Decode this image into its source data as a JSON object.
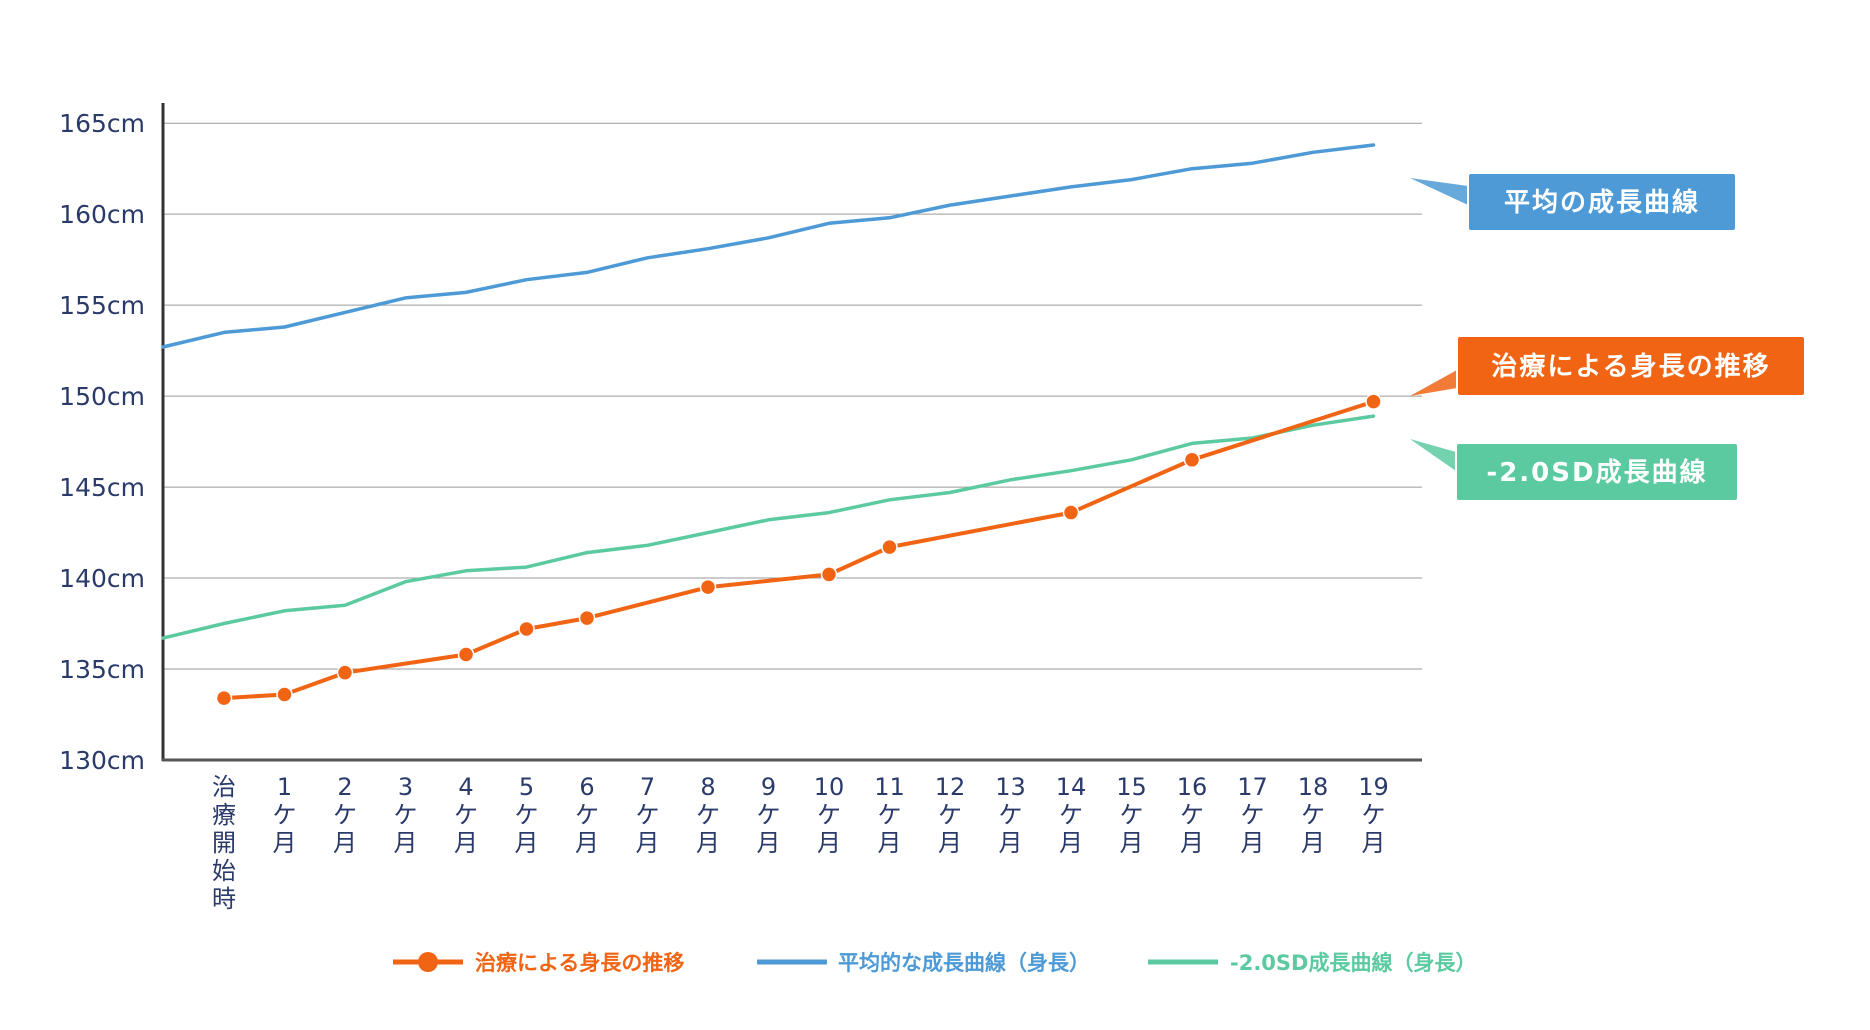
{
  "chart_data": {
    "type": "line",
    "y_tick_labels": [
      "130cm",
      "135cm",
      "140cm",
      "145cm",
      "150cm",
      "155cm",
      "160cm",
      "165cm"
    ],
    "ylim": [
      130,
      166
    ],
    "categories": [
      "治療開始時",
      "1ケ月",
      "2ケ月",
      "3ケ月",
      "4ケ月",
      "5ケ月",
      "6ケ月",
      "7ケ月",
      "8ケ月",
      "9ケ月",
      "10ケ月",
      "11ケ月",
      "12ケ月",
      "13ケ月",
      "14ケ月",
      "15ケ月",
      "16ケ月",
      "17ケ月",
      "18ケ月",
      "19ケ月"
    ],
    "x_tick_labels": [
      [
        "治",
        "療",
        "開",
        "始",
        "時"
      ],
      [
        "1",
        "ケ",
        "月"
      ],
      [
        "2",
        "ケ",
        "月"
      ],
      [
        "3",
        "ケ",
        "月"
      ],
      [
        "4",
        "ケ",
        "月"
      ],
      [
        "5",
        "ケ",
        "月"
      ],
      [
        "6",
        "ケ",
        "月"
      ],
      [
        "7",
        "ケ",
        "月"
      ],
      [
        "8",
        "ケ",
        "月"
      ],
      [
        "9",
        "ケ",
        "月"
      ],
      [
        "10",
        "ケ",
        "月"
      ],
      [
        "11",
        "ケ",
        "月"
      ],
      [
        "12",
        "ケ",
        "月"
      ],
      [
        "13",
        "ケ",
        "月"
      ],
      [
        "14",
        "ケ",
        "月"
      ],
      [
        "15",
        "ケ",
        "月"
      ],
      [
        "16",
        "ケ",
        "月"
      ],
      [
        "17",
        "ケ",
        "月"
      ],
      [
        "18",
        "ケ",
        "月"
      ],
      [
        "19",
        "ケ",
        "月"
      ]
    ],
    "series": [
      {
        "name": "治療による身長の推移",
        "color": "#f06414",
        "markers": true,
        "x": [
          0,
          1,
          2,
          4,
          5,
          6,
          8,
          10,
          11,
          14,
          16,
          19
        ],
        "values": [
          133.4,
          133.6,
          134.8,
          135.8,
          137.2,
          137.8,
          139.5,
          140.2,
          141.7,
          143.6,
          146.5,
          149.7
        ]
      },
      {
        "name": "平均的な成長曲線（身長）",
        "color": "#4d9ad6",
        "markers": false,
        "x": [
          -1,
          0,
          1,
          2,
          3,
          4,
          5,
          6,
          7,
          8,
          9,
          10,
          11,
          12,
          13,
          14,
          15,
          16,
          17,
          18,
          19
        ],
        "values": [
          152.7,
          153.5,
          153.8,
          154.6,
          155.4,
          155.7,
          156.4,
          156.8,
          157.6,
          158.1,
          158.7,
          159.5,
          159.8,
          160.5,
          161.0,
          161.5,
          161.9,
          162.5,
          162.8,
          163.4,
          163.8
        ]
      },
      {
        "name": "-2.0SD成長曲線（身長）",
        "color": "#5ccaa0",
        "markers": false,
        "x": [
          -1,
          0,
          1,
          2,
          3,
          4,
          5,
          6,
          7,
          8,
          9,
          10,
          11,
          12,
          13,
          14,
          15,
          16,
          17,
          18,
          19
        ],
        "values": [
          136.7,
          137.5,
          138.2,
          138.5,
          139.8,
          140.4,
          140.6,
          141.4,
          141.8,
          142.5,
          143.2,
          143.6,
          144.3,
          144.7,
          145.4,
          145.9,
          146.5,
          147.4,
          147.7,
          148.4,
          148.9
        ]
      }
    ],
    "callouts": [
      {
        "text": "平均の成長曲線",
        "series": 1,
        "color": "#4d9ad6"
      },
      {
        "text": "治療による身長の推移",
        "series": 0,
        "color": "#f06414"
      },
      {
        "text": "-2.0SD成長曲線",
        "series": 2,
        "color": "#5ccaa0"
      }
    ],
    "legend": [
      {
        "label": "治療による身長の推移",
        "color": "#f06414",
        "marker": true
      },
      {
        "label": "平均的な成長曲線（身長）",
        "color": "#4d9ad6",
        "marker": false
      },
      {
        "label": "-2.0SD成長曲線（身長）",
        "color": "#5ccaa0",
        "marker": false
      }
    ],
    "legend_position": "bottom",
    "grid": true
  }
}
